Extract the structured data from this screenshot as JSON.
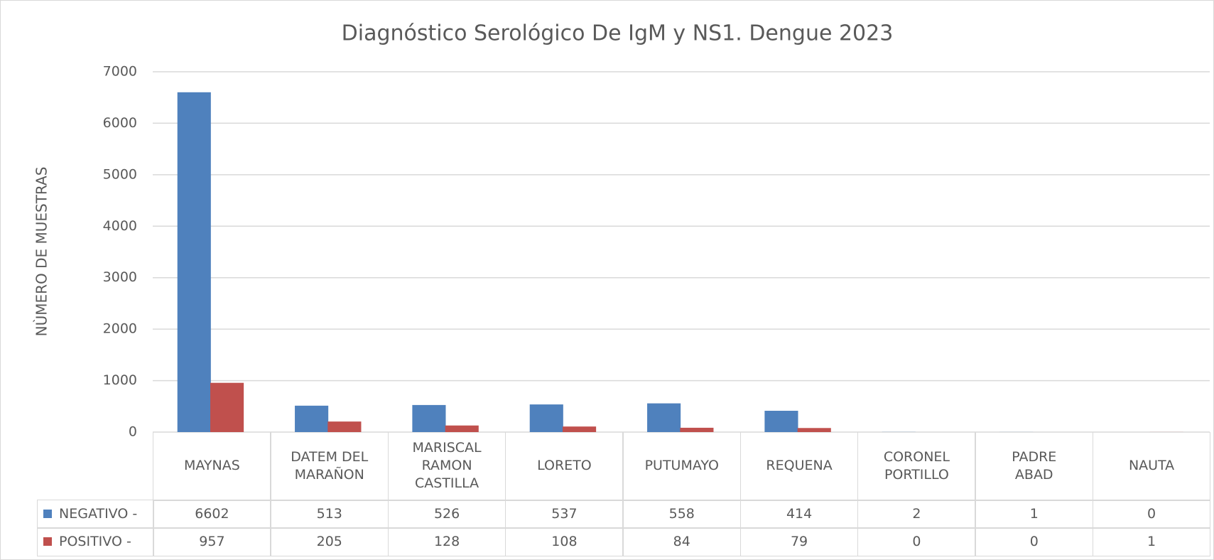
{
  "chart_data": {
    "type": "bar",
    "title": "Diagnóstico Serológico De IgM y NS1. Dengue 2023",
    "y_label": "NÙMERO DE MUESTRAS",
    "categories": [
      "MAYNAS",
      "DATEM DEL MARAÑON",
      "MARISCAL RAMON CASTILLA",
      "LORETO",
      "PUTUMAYO",
      "REQUENA",
      "CORONEL PORTILLO",
      "PADRE ABAD",
      "NAUTA"
    ],
    "series": [
      {
        "name": "NEGATIVO -",
        "color": "#4f81bd",
        "values": [
          6602,
          513,
          526,
          537,
          558,
          414,
          2,
          1,
          0
        ]
      },
      {
        "name": "POSITIVO -",
        "color": "#c0504d",
        "values": [
          957,
          205,
          128,
          108,
          84,
          79,
          0,
          0,
          1
        ]
      }
    ],
    "ylim": [
      0,
      7000
    ],
    "yticks": [
      0,
      1000,
      2000,
      3000,
      4000,
      5000,
      6000,
      7000
    ],
    "grid": true,
    "data_table": true
  }
}
